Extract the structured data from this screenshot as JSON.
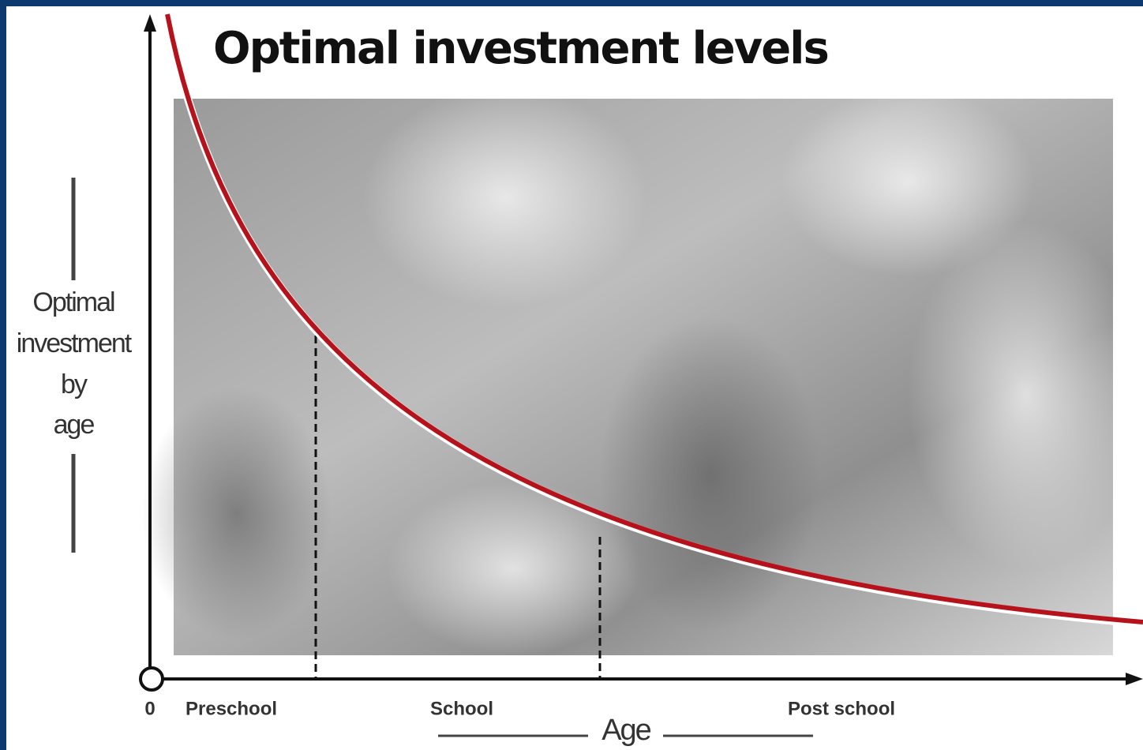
{
  "title": "Optimal investment levels",
  "y_axis_label": [
    "Optimal",
    "investment",
    "by",
    "age"
  ],
  "x_axis": {
    "origin": "0",
    "stages": [
      "Preschool",
      "School",
      "Post school"
    ],
    "label": "Age"
  }
}
